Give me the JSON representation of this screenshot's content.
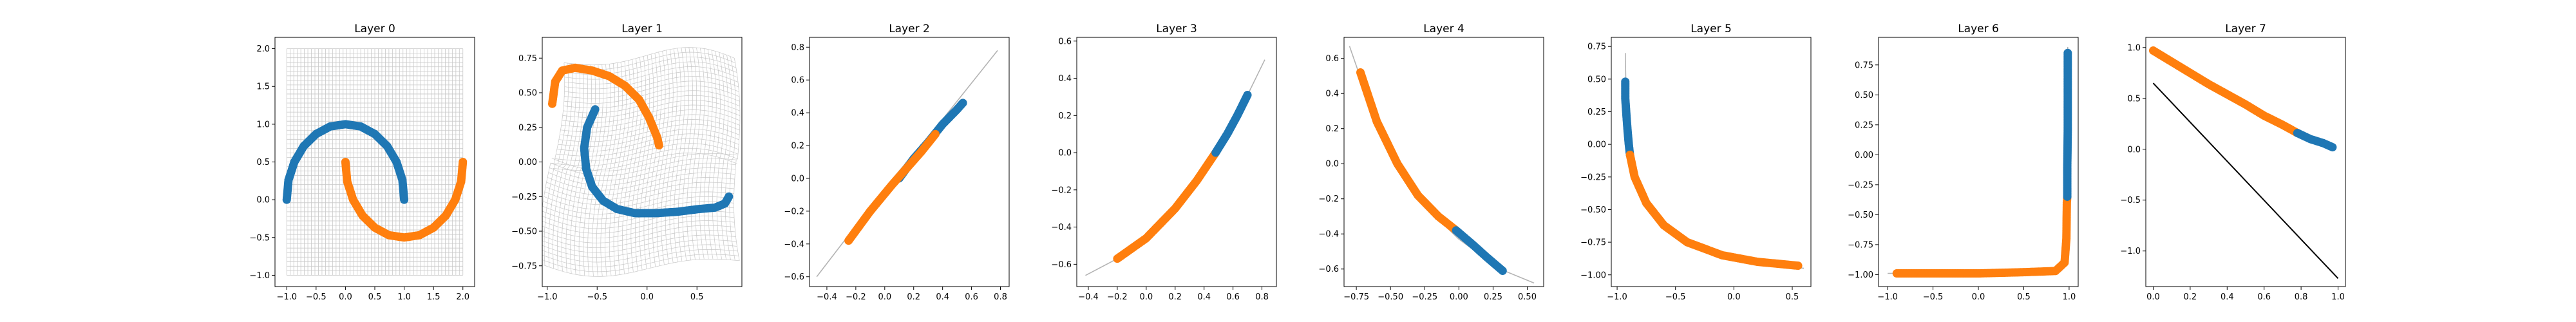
{
  "figure": {
    "background": "#ffffff"
  },
  "colors": {
    "blue": "#1f77b4",
    "orange": "#ff7f0e",
    "grid": "#c8c8c8",
    "curve": "#b3b3b3",
    "line": "#000000"
  },
  "chart_data": [
    {
      "title": "Layer 0",
      "type": "scatter",
      "xlim": [
        -1.2,
        2.2
      ],
      "ylim": [
        -1.15,
        2.15
      ],
      "xticks": [
        -1.0,
        -0.5,
        0.0,
        0.5,
        1.0,
        1.5,
        2.0
      ],
      "xtick_labels": [
        "−1.0",
        "−0.5",
        "0.0",
        "0.5",
        "1.0",
        "1.5",
        "2.0"
      ],
      "yticks": [
        -1.0,
        -0.5,
        0.0,
        0.5,
        1.0,
        1.5,
        2.0
      ],
      "ytick_labels": [
        "−1.0",
        "−0.5",
        "0.0",
        "0.5",
        "1.0",
        "1.5",
        "2.0"
      ],
      "background": "grid",
      "series": [
        {
          "color": "blue",
          "points": [
            [
              -1.0,
              0.0
            ],
            [
              -0.97,
              0.26
            ],
            [
              -0.87,
              0.5
            ],
            [
              -0.71,
              0.71
            ],
            [
              -0.5,
              0.87
            ],
            [
              -0.26,
              0.97
            ],
            [
              0.0,
              1.0
            ],
            [
              0.26,
              0.97
            ],
            [
              0.5,
              0.87
            ],
            [
              0.71,
              0.71
            ],
            [
              0.87,
              0.5
            ],
            [
              0.97,
              0.26
            ],
            [
              1.0,
              0.0
            ]
          ]
        },
        {
          "color": "orange",
          "points": [
            [
              0.0,
              0.5
            ],
            [
              0.03,
              0.24
            ],
            [
              0.13,
              0.0
            ],
            [
              0.29,
              -0.21
            ],
            [
              0.5,
              -0.37
            ],
            [
              0.74,
              -0.47
            ],
            [
              1.0,
              -0.5
            ],
            [
              1.26,
              -0.47
            ],
            [
              1.5,
              -0.37
            ],
            [
              1.71,
              -0.21
            ],
            [
              1.87,
              0.0
            ],
            [
              1.97,
              0.24
            ],
            [
              2.0,
              0.5
            ]
          ]
        }
      ]
    },
    {
      "title": "Layer 1",
      "type": "scatter",
      "xlim": [
        -1.05,
        0.95
      ],
      "ylim": [
        -0.9,
        0.9
      ],
      "xticks": [
        -1.0,
        -0.5,
        0.0,
        0.5
      ],
      "xtick_labels": [
        "−1.0",
        "−0.5",
        "0.0",
        "0.5"
      ],
      "yticks": [
        -0.75,
        -0.5,
        -0.25,
        0.0,
        0.25,
        0.5,
        0.75
      ],
      "ytick_labels": [
        "−0.75",
        "−0.50",
        "−0.25",
        "0.00",
        "0.25",
        "0.50",
        "0.75"
      ],
      "background": "warped-grid",
      "series": [
        {
          "color": "orange",
          "points": [
            [
              -0.95,
              0.42
            ],
            [
              -0.92,
              0.58
            ],
            [
              -0.85,
              0.66
            ],
            [
              -0.72,
              0.68
            ],
            [
              -0.55,
              0.66
            ],
            [
              -0.38,
              0.62
            ],
            [
              -0.22,
              0.55
            ],
            [
              -0.08,
              0.45
            ],
            [
              0.02,
              0.32
            ],
            [
              0.1,
              0.18
            ],
            [
              0.12,
              0.12
            ]
          ]
        },
        {
          "color": "blue",
          "points": [
            [
              -0.52,
              0.38
            ],
            [
              -0.6,
              0.25
            ],
            [
              -0.63,
              0.1
            ],
            [
              -0.61,
              -0.05
            ],
            [
              -0.55,
              -0.18
            ],
            [
              -0.44,
              -0.28
            ],
            [
              -0.3,
              -0.34
            ],
            [
              -0.12,
              -0.37
            ],
            [
              0.08,
              -0.37
            ],
            [
              0.3,
              -0.36
            ],
            [
              0.52,
              -0.34
            ],
            [
              0.68,
              -0.33
            ],
            [
              0.78,
              -0.3
            ],
            [
              0.82,
              -0.25
            ]
          ]
        }
      ]
    },
    {
      "title": "Layer 2",
      "type": "line-scatter",
      "xlim": [
        -0.52,
        0.86
      ],
      "ylim": [
        -0.66,
        0.86
      ],
      "xticks": [
        -0.4,
        -0.2,
        0.0,
        0.2,
        0.4,
        0.6,
        0.8
      ],
      "xtick_labels": [
        "−0.4",
        "−0.2",
        "0.0",
        "0.2",
        "0.4",
        "0.6",
        "0.8"
      ],
      "yticks": [
        -0.6,
        -0.4,
        -0.2,
        0.0,
        0.2,
        0.4,
        0.6,
        0.8
      ],
      "ytick_labels": [
        "−0.6",
        "−0.4",
        "−0.2",
        "0.0",
        "0.2",
        "0.4",
        "0.6",
        "0.8"
      ],
      "curve": [
        [
          -0.47,
          -0.6
        ],
        [
          0.0,
          -0.06
        ],
        [
          0.4,
          0.36
        ],
        [
          0.78,
          0.78
        ]
      ],
      "series": [
        {
          "color": "blue",
          "points": [
            [
              0.1,
              0.0
            ],
            [
              0.2,
              0.12
            ],
            [
              0.3,
              0.22
            ],
            [
              0.4,
              0.33
            ],
            [
              0.5,
              0.42
            ],
            [
              0.54,
              0.46
            ]
          ]
        },
        {
          "color": "orange",
          "points": [
            [
              -0.25,
              -0.38
            ],
            [
              -0.1,
              -0.2
            ],
            [
              0.05,
              -0.04
            ],
            [
              0.15,
              0.06
            ],
            [
              0.25,
              0.16
            ],
            [
              0.35,
              0.27
            ]
          ]
        }
      ]
    },
    {
      "title": "Layer 3",
      "type": "line-scatter",
      "xlim": [
        -0.48,
        0.9
      ],
      "ylim": [
        -0.72,
        0.62
      ],
      "xticks": [
        -0.4,
        -0.2,
        0.0,
        0.2,
        0.4,
        0.6,
        0.8
      ],
      "xtick_labels": [
        "−0.4",
        "−0.2",
        "0.0",
        "0.2",
        "0.4",
        "0.6",
        "0.8"
      ],
      "yticks": [
        -0.6,
        -0.4,
        -0.2,
        0.0,
        0.2,
        0.4,
        0.6
      ],
      "ytick_labels": [
        "−0.6",
        "−0.4",
        "−0.2",
        "0.0",
        "0.2",
        "0.4",
        "0.6"
      ],
      "curve": [
        [
          -0.42,
          -0.66
        ],
        [
          -0.2,
          -0.57
        ],
        [
          0.1,
          -0.38
        ],
        [
          0.4,
          -0.1
        ],
        [
          0.6,
          0.15
        ],
        [
          0.82,
          0.5
        ]
      ],
      "series": [
        {
          "color": "orange",
          "points": [
            [
              -0.2,
              -0.57
            ],
            [
              0.0,
              -0.46
            ],
            [
              0.2,
              -0.3
            ],
            [
              0.35,
              -0.15
            ],
            [
              0.48,
              0.0
            ]
          ]
        },
        {
          "color": "blue",
          "points": [
            [
              0.48,
              0.0
            ],
            [
              0.56,
              0.1
            ],
            [
              0.63,
              0.2
            ],
            [
              0.7,
              0.31
            ]
          ]
        }
      ]
    },
    {
      "title": "Layer 4",
      "type": "line-scatter",
      "xlim": [
        -0.84,
        0.62
      ],
      "ylim": [
        -0.7,
        0.72
      ],
      "xticks": [
        -0.75,
        -0.5,
        -0.25,
        0.0,
        0.25,
        0.5
      ],
      "xtick_labels": [
        "−0.75",
        "−0.50",
        "−0.25",
        "0.00",
        "0.25",
        "0.50"
      ],
      "yticks": [
        -0.6,
        -0.4,
        -0.2,
        0.0,
        0.2,
        0.4,
        0.6
      ],
      "ytick_labels": [
        "−0.6",
        "−0.4",
        "−0.2",
        "0.0",
        "0.2",
        "0.4",
        "0.6"
      ],
      "curve": [
        [
          -0.8,
          0.67
        ],
        [
          -0.6,
          0.22
        ],
        [
          -0.4,
          -0.08
        ],
        [
          -0.2,
          -0.28
        ],
        [
          0.0,
          -0.43
        ],
        [
          0.3,
          -0.6
        ],
        [
          0.55,
          -0.68
        ]
      ],
      "series": [
        {
          "color": "orange",
          "points": [
            [
              -0.72,
              0.52
            ],
            [
              -0.6,
              0.24
            ],
            [
              -0.45,
              0.0
            ],
            [
              -0.3,
              -0.18
            ],
            [
              -0.15,
              -0.3
            ],
            [
              -0.02,
              -0.38
            ]
          ]
        },
        {
          "color": "blue",
          "points": [
            [
              -0.02,
              -0.38
            ],
            [
              0.1,
              -0.46
            ],
            [
              0.2,
              -0.53
            ],
            [
              0.32,
              -0.61
            ]
          ]
        }
      ]
    },
    {
      "title": "Layer 5",
      "type": "line-scatter",
      "xlim": [
        -1.05,
        0.66
      ],
      "ylim": [
        -1.09,
        0.82
      ],
      "xticks": [
        -1.0,
        -0.5,
        0.0,
        0.5
      ],
      "xtick_labels": [
        "−1.0",
        "−0.5",
        "0.0",
        "0.5"
      ],
      "yticks": [
        -1.0,
        -0.75,
        -0.5,
        -0.25,
        0.0,
        0.25,
        0.5,
        0.75
      ],
      "ytick_labels": [
        "−1.00",
        "−0.75",
        "−0.50",
        "−0.25",
        "0.00",
        "0.25",
        "0.50",
        "0.75"
      ],
      "curve": [
        [
          -0.93,
          0.7
        ],
        [
          -0.92,
          0.2
        ],
        [
          -0.88,
          -0.1
        ],
        [
          -0.8,
          -0.35
        ],
        [
          -0.6,
          -0.6
        ],
        [
          -0.3,
          -0.8
        ],
        [
          0.1,
          -0.9
        ],
        [
          0.6,
          -0.95
        ]
      ],
      "series": [
        {
          "color": "blue",
          "points": [
            [
              -0.93,
              0.48
            ],
            [
              -0.93,
              0.35
            ],
            [
              -0.92,
              0.22
            ],
            [
              -0.91,
              0.1
            ],
            [
              -0.9,
              0.0
            ],
            [
              -0.89,
              -0.08
            ]
          ]
        },
        {
          "color": "orange",
          "points": [
            [
              -0.89,
              -0.08
            ],
            [
              -0.85,
              -0.25
            ],
            [
              -0.75,
              -0.45
            ],
            [
              -0.6,
              -0.62
            ],
            [
              -0.4,
              -0.75
            ],
            [
              -0.1,
              -0.85
            ],
            [
              0.2,
              -0.9
            ],
            [
              0.55,
              -0.93
            ]
          ]
        }
      ]
    },
    {
      "title": "Layer 6",
      "type": "line-scatter",
      "xlim": [
        -1.1,
        1.1
      ],
      "ylim": [
        -1.1,
        0.98
      ],
      "xticks": [
        -1.0,
        -0.5,
        0.0,
        0.5,
        1.0
      ],
      "xtick_labels": [
        "−1.0",
        "−0.5",
        "0.0",
        "0.5",
        "1.0"
      ],
      "yticks": [
        -1.0,
        -0.75,
        -0.5,
        -0.25,
        0.0,
        0.25,
        0.5,
        0.75
      ],
      "ytick_labels": [
        "−1.00",
        "−0.75",
        "−0.50",
        "−0.25",
        "0.00",
        "0.25",
        "0.50",
        "0.75"
      ],
      "curve": [
        [
          -1.0,
          -0.99
        ],
        [
          0.9,
          -0.97
        ],
        [
          0.97,
          -0.85
        ],
        [
          0.98,
          0.0
        ],
        [
          0.985,
          0.9
        ]
      ],
      "series": [
        {
          "color": "orange",
          "points": [
            [
              -0.9,
              -0.99
            ],
            [
              -0.5,
              -0.99
            ],
            [
              0.0,
              -0.99
            ],
            [
              0.5,
              -0.98
            ],
            [
              0.85,
              -0.97
            ],
            [
              0.95,
              -0.9
            ],
            [
              0.97,
              -0.7
            ],
            [
              0.975,
              -0.4
            ],
            [
              0.98,
              -0.35
            ]
          ]
        },
        {
          "color": "blue",
          "points": [
            [
              0.98,
              -0.35
            ],
            [
              0.98,
              -0.1
            ],
            [
              0.985,
              0.2
            ],
            [
              0.985,
              0.5
            ],
            [
              0.985,
              0.75
            ],
            [
              0.985,
              0.85
            ]
          ]
        }
      ]
    },
    {
      "title": "Layer 7",
      "type": "line-scatter",
      "xlim": [
        -0.04,
        1.04
      ],
      "ylim": [
        -1.35,
        1.1
      ],
      "xticks": [
        0.0,
        0.2,
        0.4,
        0.6,
        0.8,
        1.0
      ],
      "xtick_labels": [
        "0.0",
        "0.2",
        "0.4",
        "0.6",
        "0.8",
        "1.0"
      ],
      "yticks": [
        -1.0,
        -0.5,
        0.0,
        0.5,
        1.0
      ],
      "ytick_labels": [
        "−1.0",
        "−0.5",
        "0.0",
        "0.5",
        "1.0"
      ],
      "line": [
        [
          0.0,
          0.65
        ],
        [
          1.0,
          -1.27
        ]
      ],
      "series": [
        {
          "color": "orange",
          "points": [
            [
              0.0,
              0.97
            ],
            [
              0.1,
              0.86
            ],
            [
              0.2,
              0.75
            ],
            [
              0.3,
              0.64
            ],
            [
              0.4,
              0.54
            ],
            [
              0.5,
              0.44
            ],
            [
              0.6,
              0.33
            ],
            [
              0.7,
              0.24
            ],
            [
              0.78,
              0.16
            ]
          ]
        },
        {
          "color": "blue",
          "points": [
            [
              0.78,
              0.16
            ],
            [
              0.85,
              0.1
            ],
            [
              0.92,
              0.06
            ],
            [
              0.97,
              0.02
            ]
          ]
        }
      ]
    }
  ]
}
